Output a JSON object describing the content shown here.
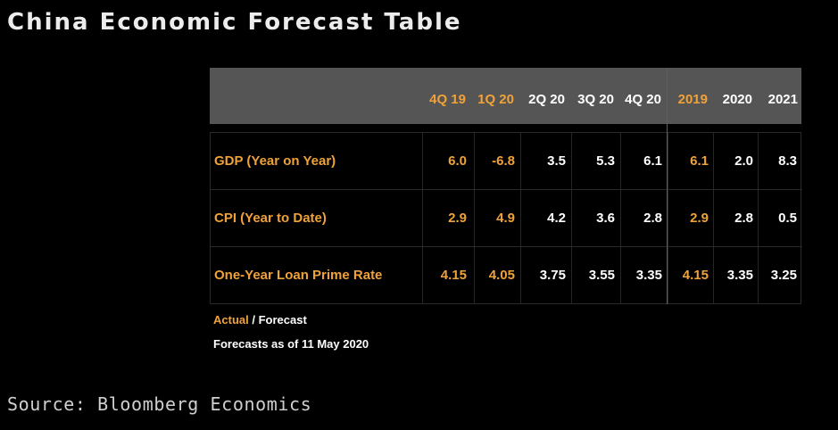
{
  "title": "China Economic Forecast Table",
  "colors": {
    "actual": "#f0a23a",
    "forecast": "#ffffff",
    "header_bg": "#555555",
    "background": "#000000"
  },
  "chart_data": {
    "type": "table",
    "columns": [
      {
        "label": "4Q 19",
        "kind": "actual"
      },
      {
        "label": "1Q 20",
        "kind": "actual"
      },
      {
        "label": "2Q 20",
        "kind": "forecast"
      },
      {
        "label": "3Q 20",
        "kind": "forecast"
      },
      {
        "label": "4Q 20",
        "kind": "forecast"
      },
      {
        "label": "2019",
        "kind": "actual"
      },
      {
        "label": "2020",
        "kind": "forecast"
      },
      {
        "label": "2021",
        "kind": "forecast"
      }
    ],
    "rows": [
      {
        "label": "GDP (Year on Year)",
        "values": [
          "6.0",
          "-6.8",
          "3.5",
          "5.3",
          "6.1",
          "6.1",
          "2.0",
          "8.3"
        ]
      },
      {
        "label": "CPI (Year to Date)",
        "values": [
          "2.9",
          "4.9",
          "4.2",
          "3.6",
          "2.8",
          "2.9",
          "2.8",
          "0.5"
        ]
      },
      {
        "label": "One-Year Loan Prime Rate",
        "values": [
          "4.15",
          "4.05",
          "3.75",
          "3.55",
          "3.35",
          "4.15",
          "3.35",
          "3.25"
        ]
      }
    ]
  },
  "legend": {
    "actual": "Actual",
    "separator": " / ",
    "forecast": "Forecast"
  },
  "note": "Forecasts as of 11 May 2020",
  "source": "Source: Bloomberg Economics"
}
